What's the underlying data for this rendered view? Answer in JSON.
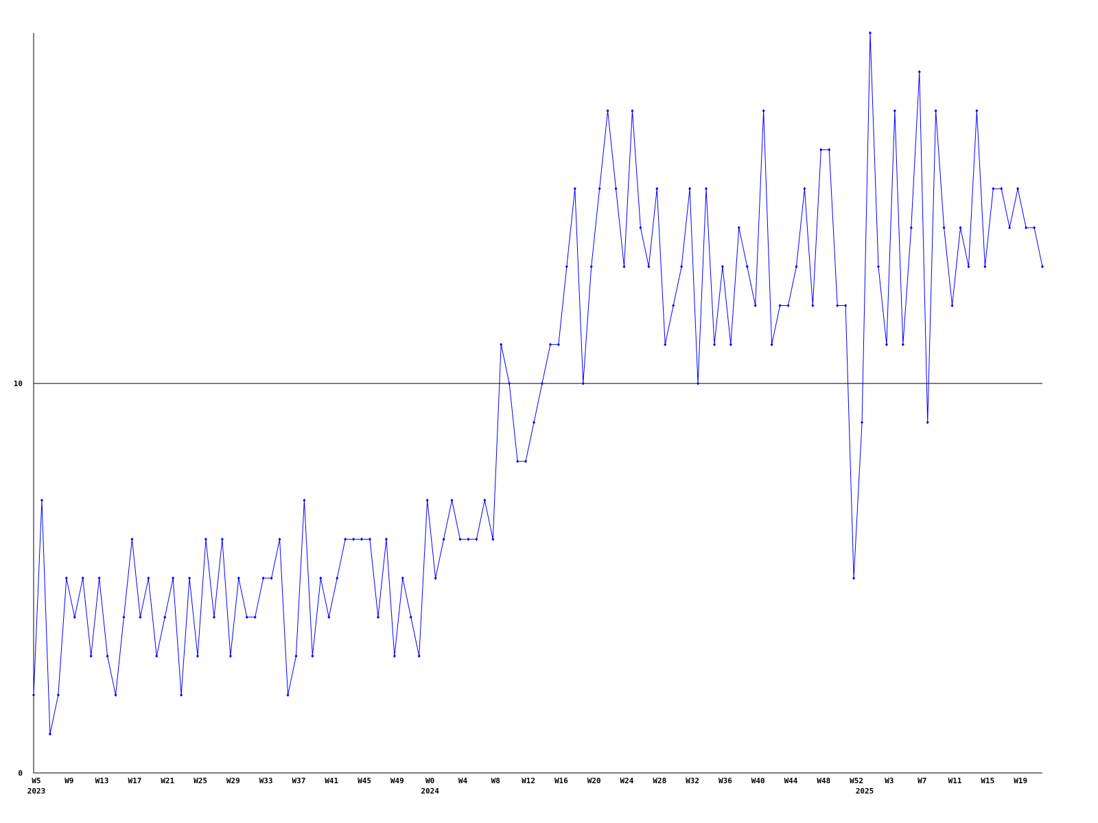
{
  "chart_data": {
    "type": "line",
    "categories": [
      "W5",
      null,
      null,
      null,
      "W9",
      null,
      null,
      null,
      "W13",
      null,
      null,
      null,
      "W17",
      null,
      null,
      null,
      "W21",
      null,
      null,
      null,
      "W25",
      null,
      null,
      null,
      "W29",
      null,
      null,
      null,
      "W33",
      null,
      null,
      null,
      "W37",
      null,
      null,
      null,
      "W41",
      null,
      null,
      null,
      "W45",
      null,
      null,
      null,
      "W49",
      null,
      null,
      null,
      "W0",
      null,
      null,
      null,
      "W4",
      null,
      null,
      null,
      "W8",
      null,
      null,
      null,
      "W12",
      null,
      null,
      null,
      "W16",
      null,
      null,
      null,
      "W20",
      null,
      null,
      null,
      "W24",
      null,
      null,
      null,
      "W28",
      null,
      null,
      null,
      "W32",
      null,
      null,
      null,
      "W36",
      null,
      null,
      null,
      "W40",
      null,
      null,
      null,
      "W44",
      null,
      null,
      null,
      "W48",
      null,
      null,
      null,
      "W52",
      null,
      null,
      null,
      "W3",
      null,
      null,
      null,
      "W7",
      null,
      null,
      null,
      "W11",
      null,
      null,
      null,
      "W15",
      null,
      null,
      null,
      "W19",
      null,
      null,
      null
    ],
    "category_years": [
      "2023",
      null,
      null,
      null,
      null,
      null,
      null,
      null,
      null,
      null,
      null,
      null,
      null,
      null,
      null,
      null,
      null,
      null,
      null,
      null,
      null,
      null,
      null,
      null,
      null,
      null,
      null,
      null,
      null,
      null,
      null,
      null,
      null,
      null,
      null,
      null,
      null,
      null,
      null,
      null,
      null,
      null,
      null,
      null,
      null,
      null,
      null,
      null,
      "2024",
      null,
      null,
      null,
      null,
      null,
      null,
      null,
      null,
      null,
      null,
      null,
      null,
      null,
      null,
      null,
      null,
      null,
      null,
      null,
      null,
      null,
      null,
      null,
      null,
      null,
      null,
      null,
      null,
      null,
      null,
      null,
      null,
      null,
      null,
      null,
      null,
      null,
      null,
      null,
      null,
      null,
      null,
      null,
      null,
      null,
      null,
      null,
      null,
      null,
      null,
      null,
      null,
      "2025",
      null,
      null,
      null,
      null,
      null,
      null,
      null,
      null,
      null,
      null,
      null,
      null,
      null,
      null,
      null,
      null,
      null,
      null,
      null,
      null,
      null,
      null
    ],
    "series": [
      {
        "color": "#0000ff",
        "values": [
          2,
          7,
          1,
          2,
          5,
          4,
          5,
          3,
          5,
          3,
          2,
          4,
          6,
          4,
          5,
          3,
          4,
          5,
          2,
          5,
          3,
          6,
          4,
          6,
          3,
          5,
          4,
          4,
          5,
          5,
          6,
          2,
          3,
          7,
          3,
          5,
          4,
          5,
          6,
          6,
          6,
          6,
          4,
          6,
          3,
          5,
          4,
          3,
          7,
          5,
          6,
          7,
          6,
          6,
          6,
          7,
          6,
          11,
          10,
          8,
          8,
          9,
          10,
          11,
          11,
          13,
          15,
          10,
          13,
          15,
          17,
          15,
          13,
          17,
          14,
          13,
          15,
          11,
          12,
          13,
          15,
          10,
          15,
          11,
          13,
          11,
          14,
          13,
          12,
          17,
          11,
          12,
          12,
          13,
          15,
          12,
          16,
          16,
          12,
          12,
          5,
          9,
          19,
          13,
          11,
          17,
          11,
          14,
          18,
          9,
          17,
          14,
          12,
          14,
          13,
          17,
          13,
          15,
          15,
          14,
          15,
          14,
          14,
          13
        ]
      }
    ],
    "ylim": [
      0,
      19
    ],
    "yticks": [
      0,
      10
    ],
    "grid": true
  }
}
